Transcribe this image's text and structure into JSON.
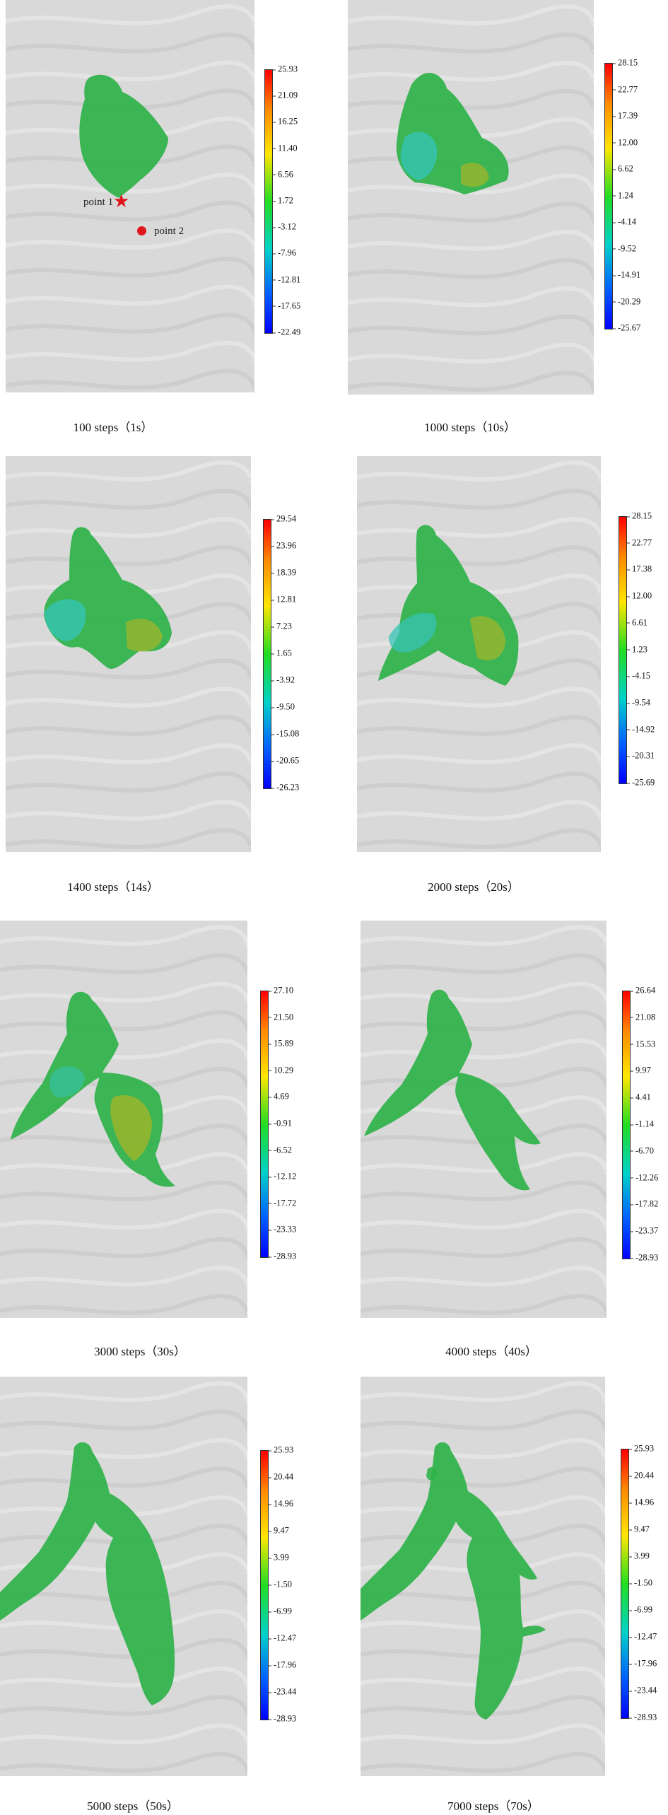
{
  "panels": [
    {
      "caption": "100 steps（1s）",
      "ticks": [
        "25.93",
        "21.09",
        "16.25",
        "11.40",
        "6.56",
        "1.72",
        "-3.12",
        "-7.96",
        "-12.81",
        "-17.65",
        "-22.49"
      ]
    },
    {
      "caption": "1000 steps（10s）",
      "ticks": [
        "28.15",
        "22.77",
        "17.39",
        "12.00",
        "6.62",
        "1.24",
        "-4.14",
        "-9.52",
        "-14.91",
        "-20.29",
        "-25.67"
      ]
    },
    {
      "caption": "1400 steps（14s）",
      "ticks": [
        "29.54",
        "23.96",
        "18.39",
        "12.81",
        "7.23",
        "1.65",
        "-3.92",
        "-9.50",
        "-15.08",
        "-20.65",
        "-26.23"
      ]
    },
    {
      "caption": "2000 steps（20s）",
      "ticks": [
        "28.15",
        "22.77",
        "17.38",
        "12.00",
        "6.61",
        "1.23",
        "-4.15",
        "-9.54",
        "-14.92",
        "-20.31",
        "-25.69"
      ]
    },
    {
      "caption": "3000 steps（30s）",
      "ticks": [
        "27.10",
        "21.50",
        "15.89",
        "10.29",
        "4.69",
        "-0.91",
        "-6.52",
        "-12.12",
        "-17.72",
        "-23.33",
        "-28.93"
      ]
    },
    {
      "caption": "4000 steps（40s）",
      "ticks": [
        "26.64",
        "21.08",
        "15.53",
        "9.97",
        "4.41",
        "-1.14",
        "-6.70",
        "-12.26",
        "-17.82",
        "-23.37",
        "-28.93"
      ]
    },
    {
      "caption": "5000 steps（50s）",
      "ticks": [
        "25.93",
        "20.44",
        "14.96",
        "9.47",
        "3.99",
        "-1.50",
        "-6.99",
        "-12.47",
        "-17.96",
        "-23.44",
        "-28.93"
      ]
    },
    {
      "caption": "7000 steps（70s）",
      "ticks": [
        "25.93",
        "20.44",
        "14.96",
        "9.47",
        "3.99",
        "-1.50",
        "-6.99",
        "-12.47",
        "-17.96",
        "-23.44",
        "-28.93"
      ]
    }
  ],
  "markers": {
    "point1": "point 1",
    "point2": "point 2"
  },
  "colors": {
    "terrain": "#d9d9d9",
    "flow": "#2fb24a",
    "marker": "#e0151b"
  }
}
